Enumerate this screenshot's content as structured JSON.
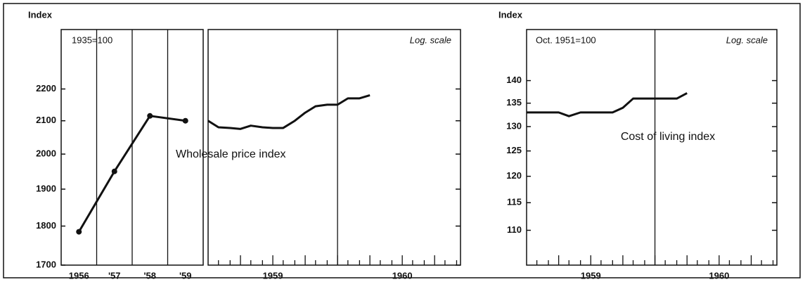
{
  "chart_data": [
    {
      "type": "line",
      "y_label": "Index",
      "note": "1935=100",
      "categories": [
        "1956",
        "'57",
        "'58",
        "'59"
      ],
      "values": [
        1785,
        1950,
        2115,
        2100
      ],
      "ylim": [
        1700,
        2400
      ],
      "yticks": [
        1700,
        1800,
        1900,
        2000,
        2100,
        2200
      ],
      "log_scale": true,
      "color": "#111111",
      "markers": true
    },
    {
      "type": "line",
      "scale_note": "Log. scale",
      "annotation": "Wholesale price index",
      "x": [
        1959,
        1959.08,
        1959.17,
        1959.25,
        1959.33,
        1959.42,
        1959.5,
        1959.58,
        1959.67,
        1959.75,
        1959.83,
        1959.92,
        1960,
        1960.08,
        1960.17,
        1960.25
      ],
      "values": [
        2100,
        2080,
        2078,
        2075,
        2085,
        2080,
        2078,
        2078,
        2100,
        2125,
        2145,
        2150,
        2150,
        2170,
        2170,
        2180
      ],
      "xlim": [
        1959,
        1960.95
      ],
      "xticks": [
        1959.08,
        1959.17,
        1959.25,
        1959.33,
        1959.42,
        1959.5,
        1959.58,
        1959.67,
        1959.75,
        1959.83,
        1959.92,
        1960,
        1960.08,
        1960.17,
        1960.25,
        1960.33,
        1960.42,
        1960.5,
        1960.58,
        1960.67,
        1960.75,
        1960.83,
        1960.92
      ],
      "year_labels": [
        {
          "value": 1959.5,
          "label": "1959"
        },
        {
          "value": 1960.5,
          "label": "1960"
        }
      ],
      "divider": 1960,
      "ylim": [
        1700,
        2400
      ],
      "log_scale": true,
      "color": "#111111"
    },
    {
      "type": "line",
      "y_label": "Index",
      "note": "Oct. 1951=100",
      "scale_note": "Log. scale",
      "annotation": "Cost of living index",
      "x": [
        1959,
        1959.08,
        1959.17,
        1959.25,
        1959.33,
        1959.42,
        1959.5,
        1959.58,
        1959.67,
        1959.75,
        1959.83,
        1959.92,
        1960,
        1960.08,
        1960.17,
        1960.25
      ],
      "values": [
        133,
        133,
        133,
        133,
        132.2,
        133,
        133,
        133,
        133,
        134,
        136,
        136,
        136,
        136,
        136,
        137.2
      ],
      "xlim": [
        1959,
        1960.95
      ],
      "xticks": [
        1959.08,
        1959.17,
        1959.25,
        1959.33,
        1959.42,
        1959.5,
        1959.58,
        1959.67,
        1959.75,
        1959.83,
        1959.92,
        1960,
        1960.08,
        1960.17,
        1960.25,
        1960.33,
        1960.42,
        1960.5,
        1960.58,
        1960.67,
        1960.75,
        1960.83,
        1960.92
      ],
      "year_labels": [
        {
          "value": 1959.5,
          "label": "1959"
        },
        {
          "value": 1960.5,
          "label": "1960"
        }
      ],
      "divider": 1960,
      "ylim": [
        104,
        152
      ],
      "yticks": [
        110,
        115,
        120,
        125,
        130,
        135,
        140
      ],
      "log_scale": true,
      "color": "#111111"
    }
  ]
}
